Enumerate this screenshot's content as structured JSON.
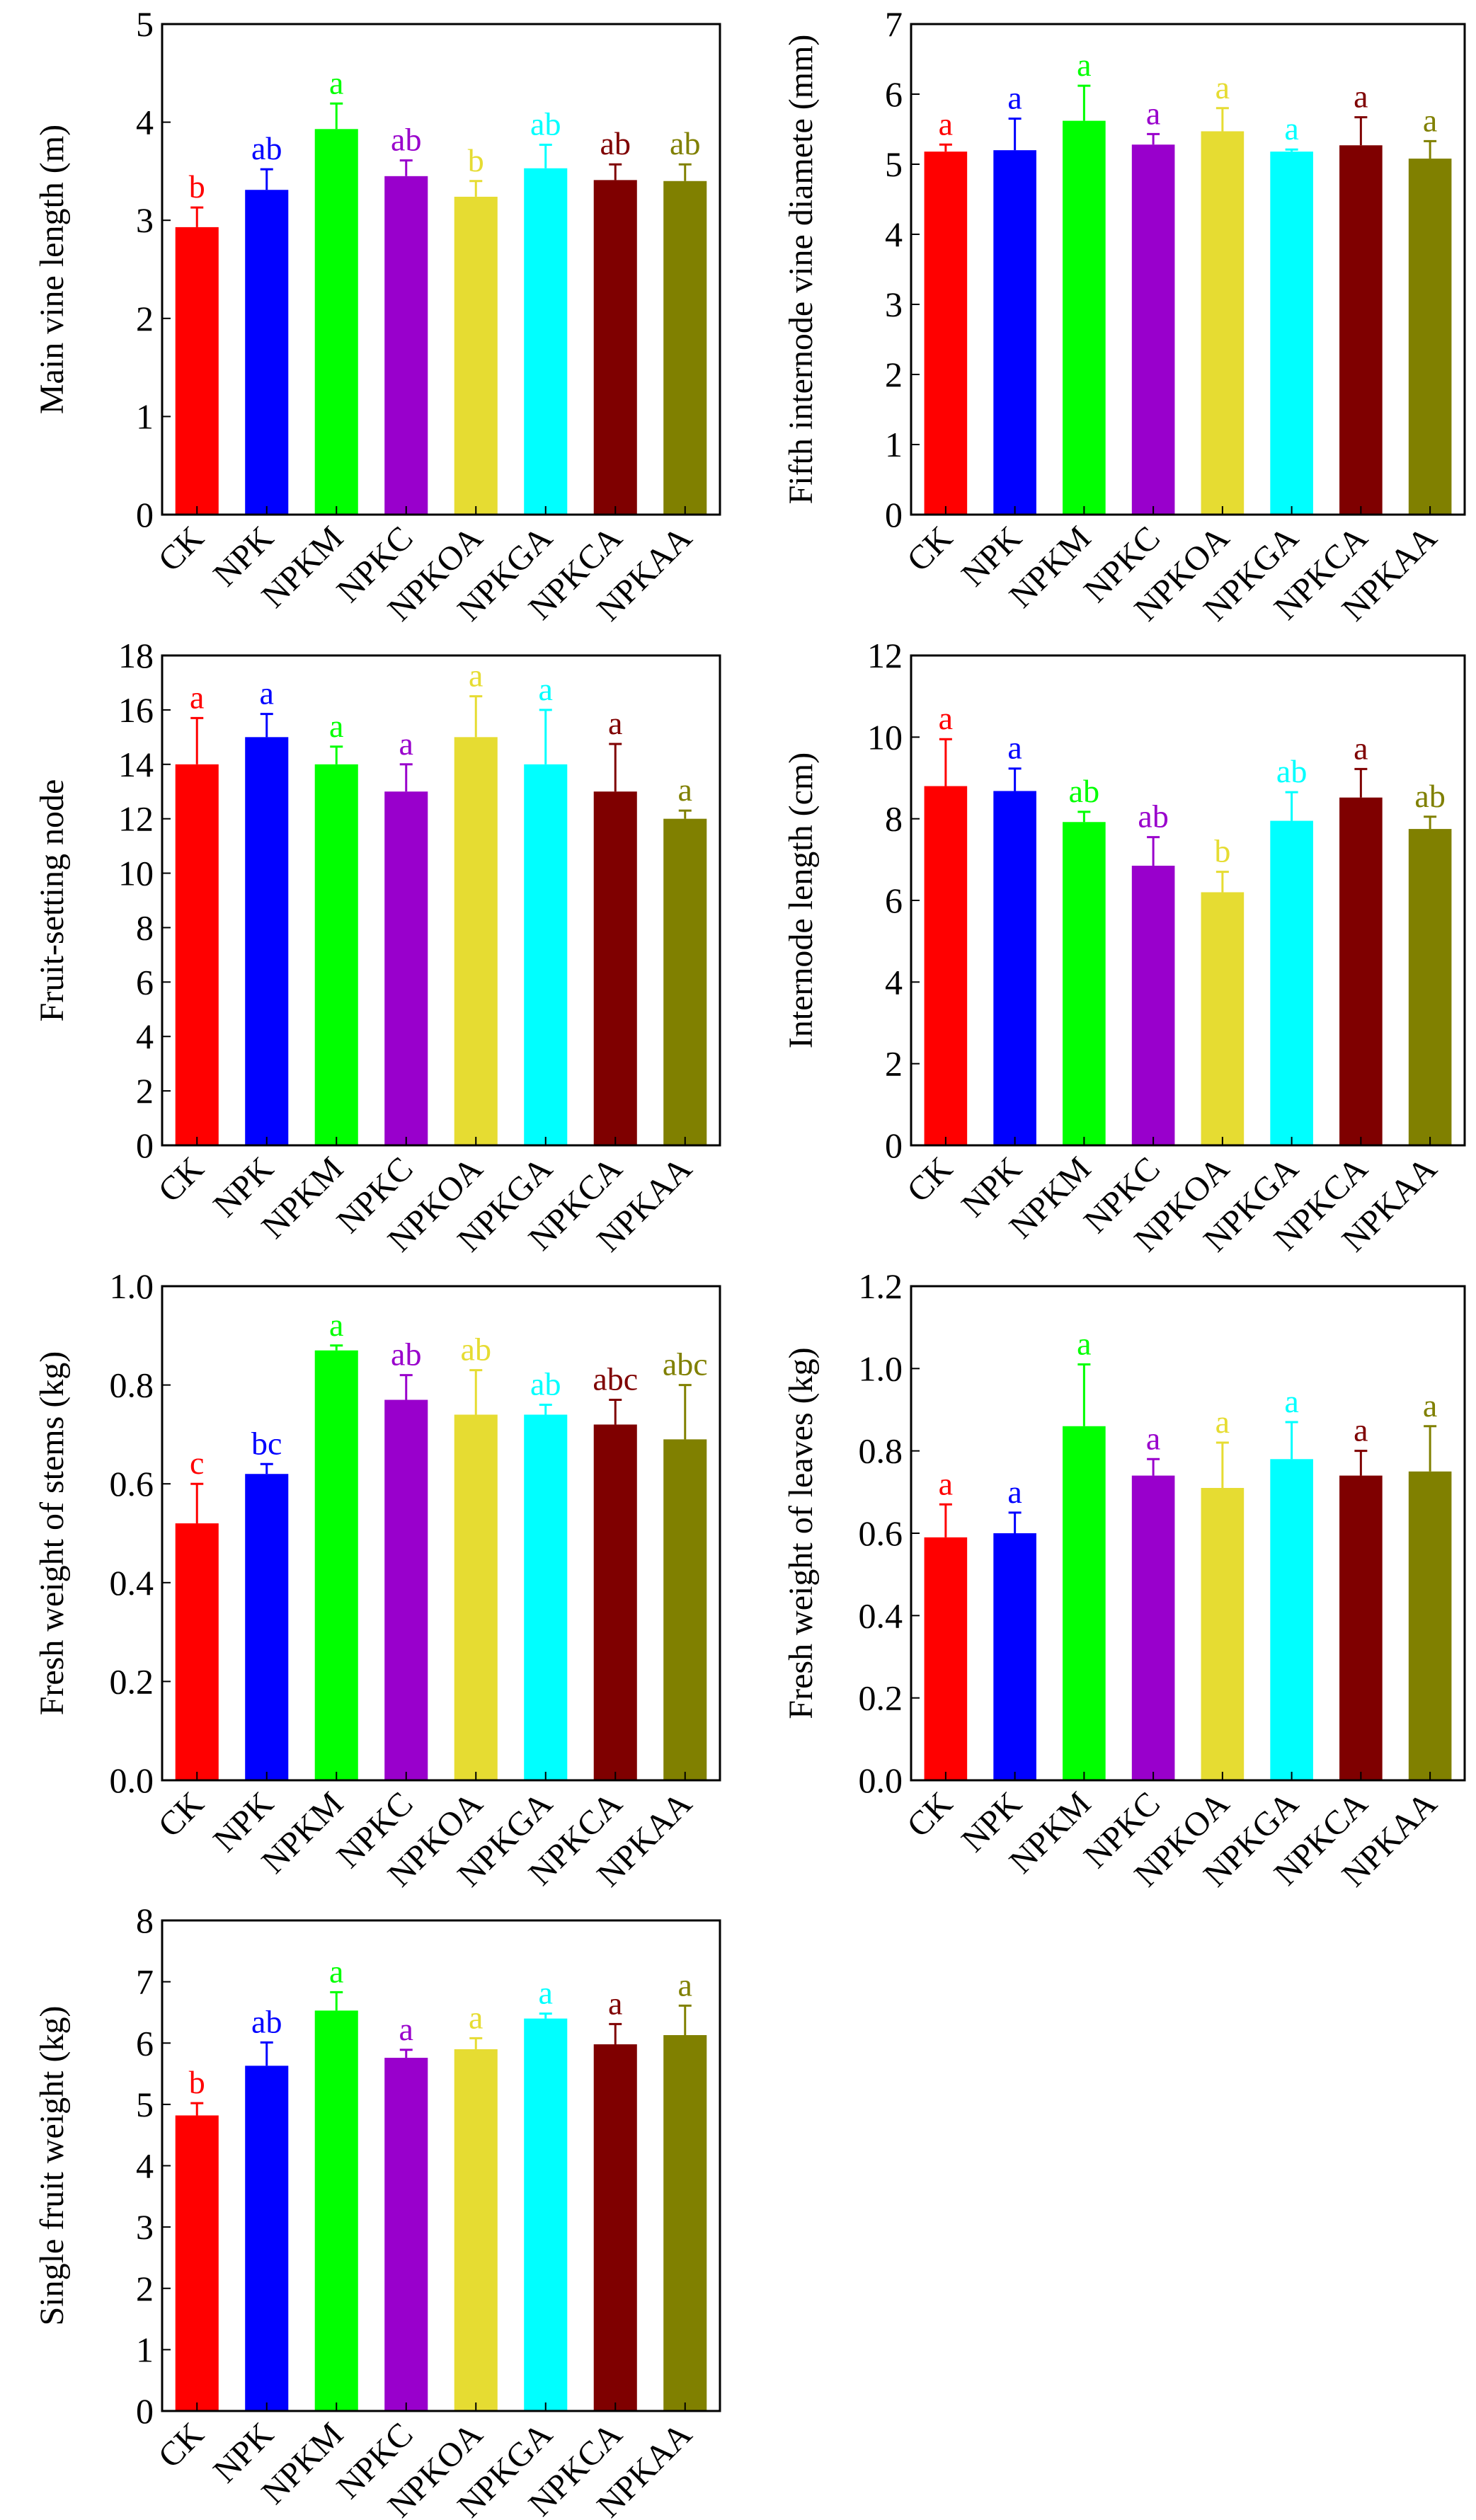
{
  "colors": [
    "#ff0000",
    "#0000ff",
    "#00ff00",
    "#9900cc",
    "#e6dc32",
    "#00ffff",
    "#7f0000",
    "#808000"
  ],
  "chart_data": [
    {
      "type": "bar",
      "ylabel": "Main vine length (m)",
      "categories": [
        "CK",
        "NPK",
        "NPKM",
        "NPKC",
        "NPKOA",
        "NPKGA",
        "NPKCA",
        "NPKAA"
      ],
      "values": [
        2.93,
        3.31,
        3.93,
        3.45,
        3.24,
        3.53,
        3.41,
        3.4
      ],
      "errors": [
        0.2,
        0.21,
        0.26,
        0.16,
        0.16,
        0.24,
        0.16,
        0.17
      ],
      "letters": [
        "b",
        "ab",
        "a",
        "ab",
        "b",
        "ab",
        "ab",
        "ab"
      ],
      "ylim": [
        0,
        5
      ],
      "yticks": [
        "0",
        "1",
        "2",
        "3",
        "4",
        "5"
      ]
    },
    {
      "type": "bar",
      "ylabel": "Fifth internode vine diamete (mm)",
      "categories": [
        "CK",
        "NPK",
        "NPKM",
        "NPKC",
        "NPKOA",
        "NPKGA",
        "NPKCA",
        "NPKAA"
      ],
      "values": [
        5.18,
        5.2,
        5.62,
        5.28,
        5.47,
        5.18,
        5.27,
        5.08
      ],
      "errors": [
        0.1,
        0.45,
        0.5,
        0.15,
        0.33,
        0.03,
        0.4,
        0.25
      ],
      "letters": [
        "a",
        "a",
        "a",
        "a",
        "a",
        "a",
        "a",
        "a"
      ],
      "ylim": [
        0,
        7
      ],
      "yticks": [
        "0",
        "1",
        "2",
        "3",
        "4",
        "5",
        "6",
        "7"
      ]
    },
    {
      "type": "bar",
      "ylabel": "Fruit-setting node",
      "categories": [
        "CK",
        "NPK",
        "NPKM",
        "NPKC",
        "NPKOA",
        "NPKGA",
        "NPKCA",
        "NPKAA"
      ],
      "values": [
        14,
        15,
        14,
        13,
        15,
        14,
        13,
        12
      ],
      "errors": [
        1.7,
        0.85,
        0.65,
        1.0,
        1.5,
        2.0,
        1.75,
        0.3
      ],
      "letters": [
        "a",
        "a",
        "a",
        "a",
        "a",
        "a",
        "a",
        "a"
      ],
      "ylim": [
        0,
        18
      ],
      "yticks": [
        "0",
        "2",
        "4",
        "6",
        "8",
        "10",
        "12",
        "14",
        "16",
        "18"
      ]
    },
    {
      "type": "bar",
      "ylabel": "Internode length (cm)",
      "categories": [
        "CK",
        "NPK",
        "NPKM",
        "NPKC",
        "NPKOA",
        "NPKGA",
        "NPKCA",
        "NPKAA"
      ],
      "values": [
        8.8,
        8.68,
        7.92,
        6.85,
        6.2,
        7.95,
        8.52,
        7.75
      ],
      "errors": [
        1.15,
        0.55,
        0.25,
        0.7,
        0.5,
        0.7,
        0.7,
        0.3
      ],
      "letters": [
        "a",
        "a",
        "ab",
        "ab",
        "b",
        "ab",
        "a",
        "ab"
      ],
      "ylim": [
        0,
        12
      ],
      "yticks": [
        "0",
        "2",
        "4",
        "6",
        "8",
        "10",
        "12"
      ]
    },
    {
      "type": "bar",
      "ylabel": "Fresh weight of stems (kg)",
      "categories": [
        "CK",
        "NPK",
        "NPKM",
        "NPKC",
        "NPKOA",
        "NPKGA",
        "NPKCA",
        "NPKAA"
      ],
      "values": [
        0.52,
        0.62,
        0.87,
        0.77,
        0.74,
        0.74,
        0.72,
        0.69
      ],
      "errors": [
        0.08,
        0.02,
        0.01,
        0.05,
        0.09,
        0.02,
        0.05,
        0.11
      ],
      "letters": [
        "c",
        "bc",
        "a",
        "ab",
        "ab",
        "ab",
        "abc",
        "abc"
      ],
      "ylim": [
        0,
        1.0
      ],
      "yticks": [
        "0.0",
        "0.2",
        "0.4",
        "0.6",
        "0.8",
        "1.0"
      ]
    },
    {
      "type": "bar",
      "ylabel": "Fresh weight of leaves (kg)",
      "categories": [
        "CK",
        "NPK",
        "NPKM",
        "NPKC",
        "NPKOA",
        "NPKGA",
        "NPKCA",
        "NPKAA"
      ],
      "values": [
        0.59,
        0.6,
        0.86,
        0.74,
        0.71,
        0.78,
        0.74,
        0.75
      ],
      "errors": [
        0.08,
        0.05,
        0.15,
        0.04,
        0.11,
        0.09,
        0.06,
        0.11
      ],
      "letters": [
        "a",
        "a",
        "a",
        "a",
        "a",
        "a",
        "a",
        "a"
      ],
      "ylim": [
        0,
        1.2
      ],
      "yticks": [
        "0.0",
        "0.2",
        "0.4",
        "0.6",
        "0.8",
        "1.0",
        "1.2"
      ]
    },
    {
      "type": "bar",
      "ylabel": "Single fruit weight (kg)",
      "categories": [
        "CK",
        "NPK",
        "NPKM",
        "NPKC",
        "NPKOA",
        "NPKGA",
        "NPKCA",
        "NPKAA"
      ],
      "values": [
        4.82,
        5.63,
        6.53,
        5.76,
        5.9,
        6.4,
        5.98,
        6.13
      ],
      "errors": [
        0.2,
        0.38,
        0.3,
        0.13,
        0.18,
        0.08,
        0.33,
        0.48
      ],
      "letters": [
        "b",
        "ab",
        "a",
        "a",
        "a",
        "a",
        "a",
        "a"
      ],
      "ylim": [
        0,
        8
      ],
      "yticks": [
        "0",
        "1",
        "2",
        "3",
        "4",
        "5",
        "6",
        "7",
        "8"
      ]
    }
  ]
}
